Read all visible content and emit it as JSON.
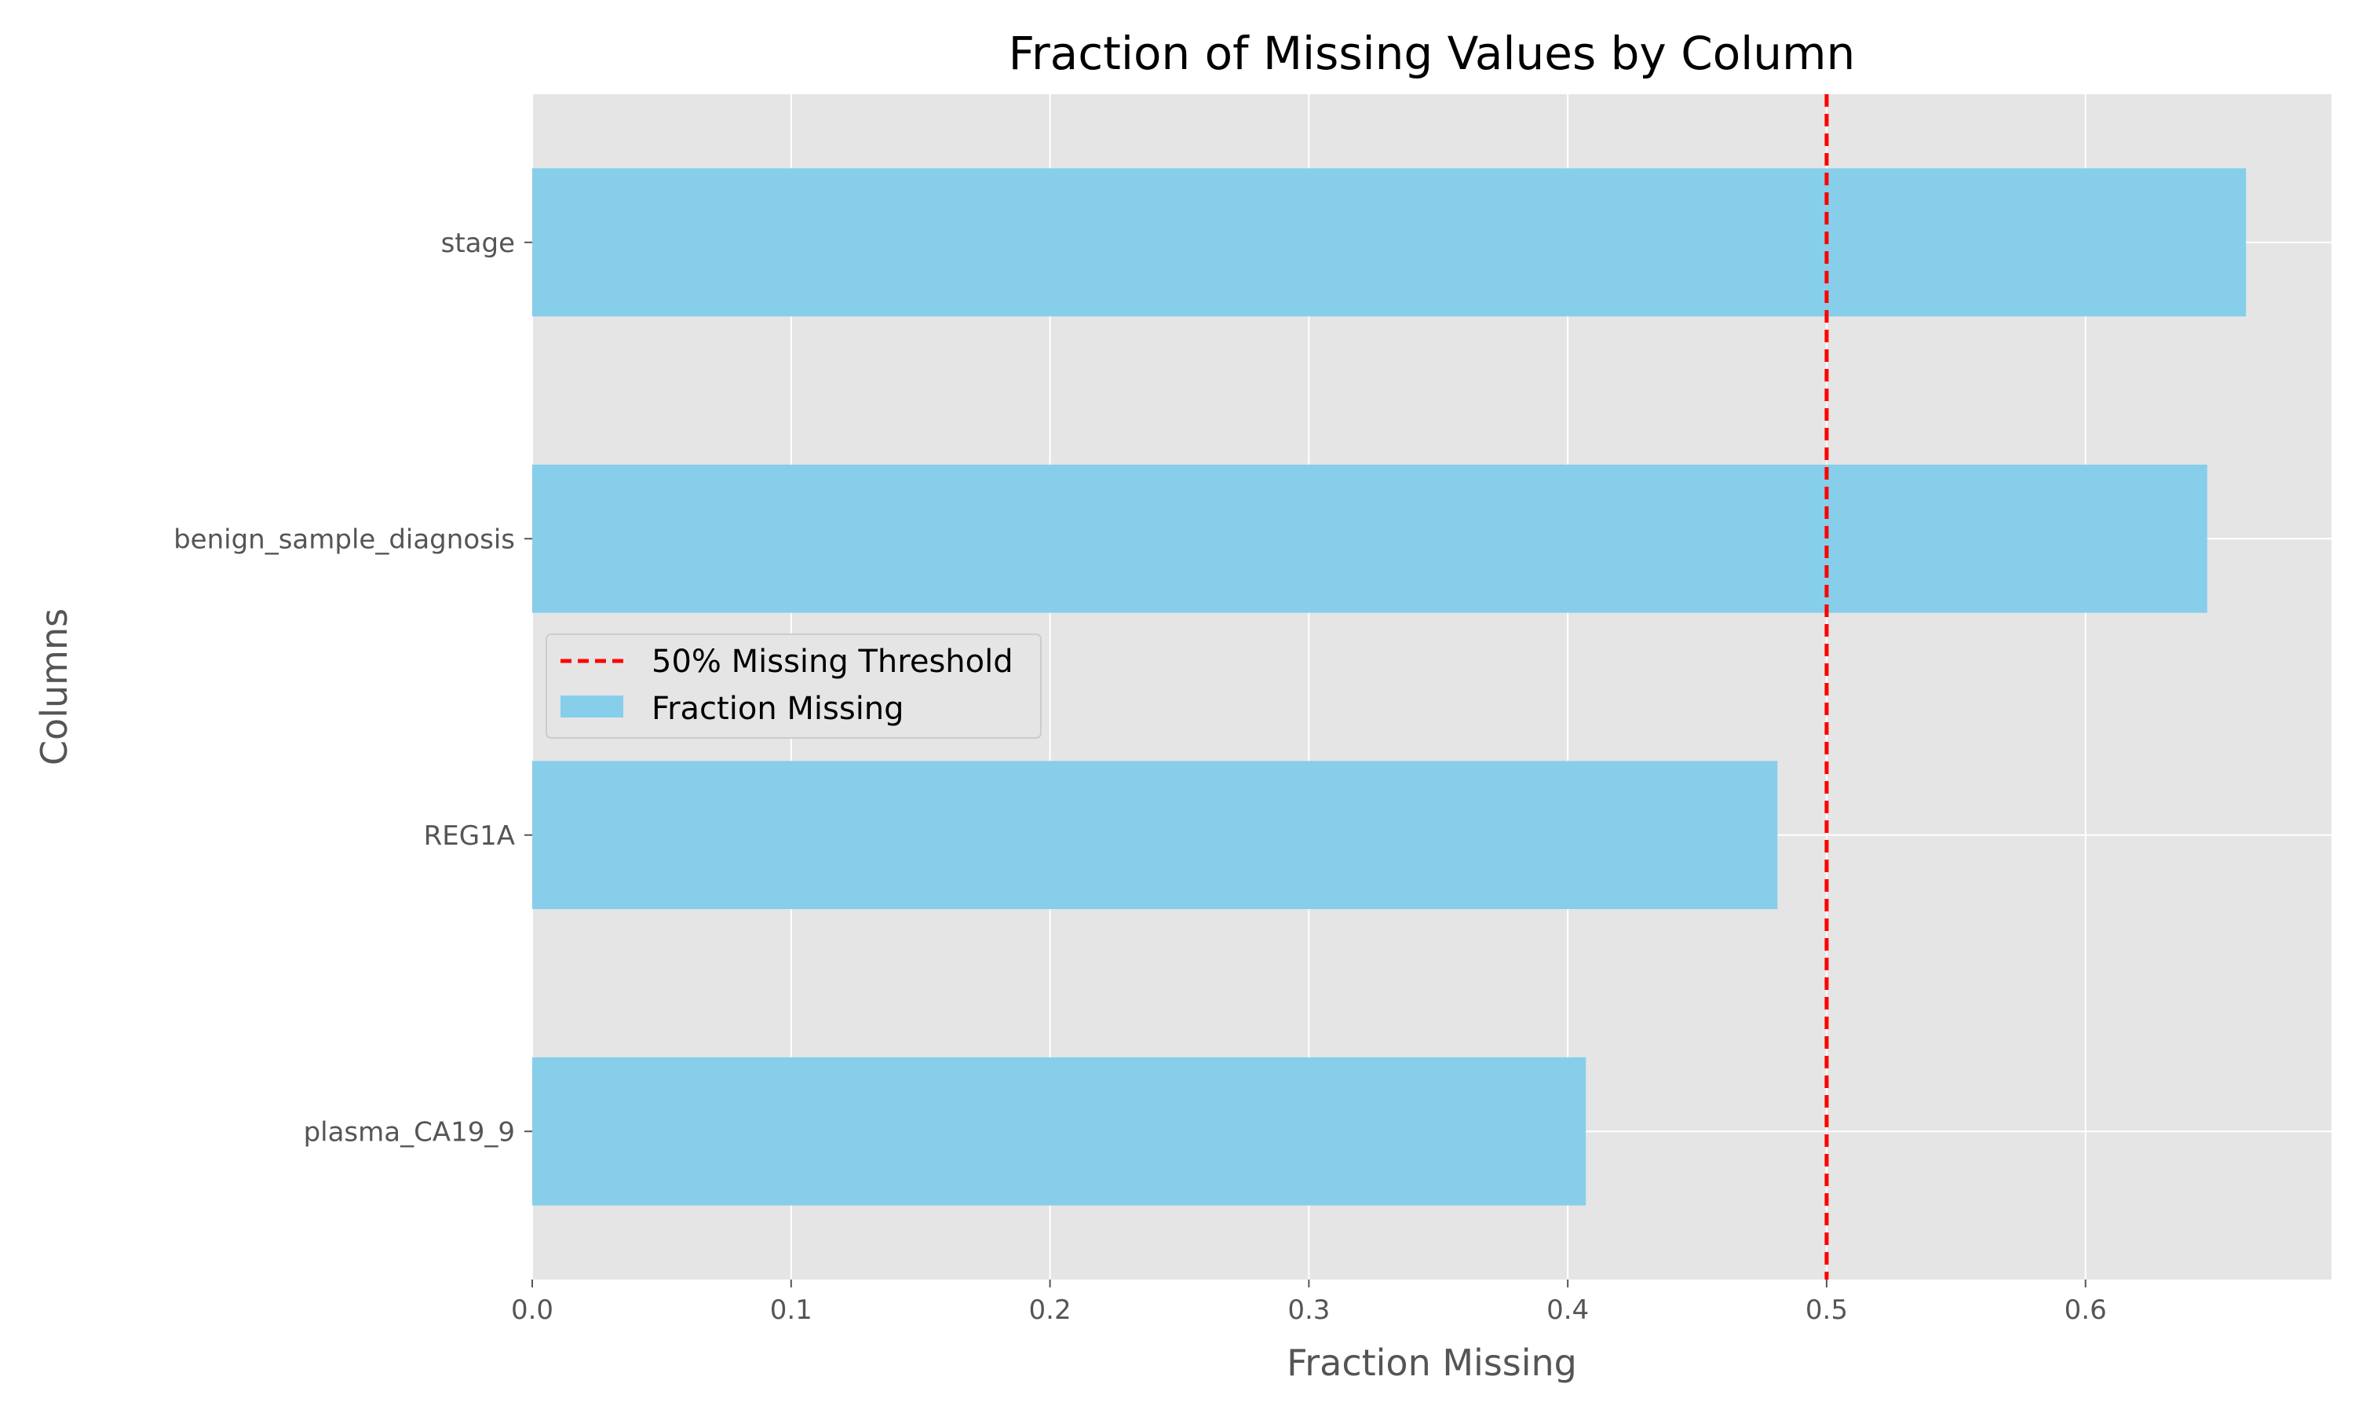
{
  "chart_data": {
    "type": "bar",
    "orientation": "horizontal",
    "title": "Fraction of Missing Values by Column",
    "xlabel": "Fraction Missing",
    "ylabel": "Columns",
    "categories": [
      "stage",
      "benign_sample_diagnosis",
      "REG1A",
      "plasma_CA19_9"
    ],
    "series": [
      {
        "name": "Fraction Missing",
        "values": [
          0.662,
          0.647,
          0.481,
          0.407
        ],
        "color": "#87CEEB"
      }
    ],
    "reference_lines": [
      {
        "name": "50% Missing Threshold",
        "x": 0.5,
        "color": "#ff0000",
        "style": "dashed"
      }
    ],
    "xlim": [
      0,
      0.695
    ],
    "xticks": [
      0.0,
      0.1,
      0.2,
      0.3,
      0.4,
      0.5,
      0.6
    ],
    "xtick_labels": [
      "0.0",
      "0.1",
      "0.2",
      "0.3",
      "0.4",
      "0.5",
      "0.6"
    ],
    "grid": true,
    "legend_position": "center-left",
    "style": "ggplot",
    "background_color": "#e5e5e5"
  }
}
